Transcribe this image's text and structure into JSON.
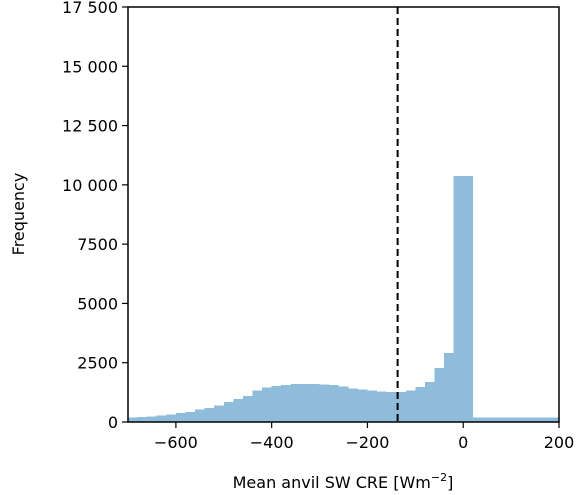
{
  "chart_data": {
    "type": "bar",
    "xlabel_main": "Mean anvil SW CRE [Wm",
    "xlabel_sup": "−2",
    "xlabel_end": "]",
    "ylabel": "Frequency",
    "xlim": [
      -700,
      200
    ],
    "ylim": [
      0,
      17500
    ],
    "bin_width": 20,
    "bar_color": "#8fbcdb",
    "reference_line_x": -137,
    "reference_line_color": "#000000",
    "x_ticks": [
      {
        "value": -600,
        "label": "−600"
      },
      {
        "value": -400,
        "label": "−400"
      },
      {
        "value": -200,
        "label": "−200"
      },
      {
        "value": 0,
        "label": "0"
      },
      {
        "value": 200,
        "label": "200"
      }
    ],
    "y_ticks": [
      {
        "value": 0,
        "label": "0"
      },
      {
        "value": 2500,
        "label": "2500"
      },
      {
        "value": 5000,
        "label": "5000"
      },
      {
        "value": 7500,
        "label": "7500"
      },
      {
        "value": 10000,
        "label": "10 000"
      },
      {
        "value": 12500,
        "label": "12 500"
      },
      {
        "value": 15000,
        "label": "15 000"
      },
      {
        "value": 17500,
        "label": "17 500"
      }
    ],
    "bins": [
      {
        "x0": -700,
        "x1": -680,
        "value": 200
      },
      {
        "x0": -680,
        "x1": -660,
        "value": 210
      },
      {
        "x0": -660,
        "x1": -640,
        "value": 240
      },
      {
        "x0": -640,
        "x1": -620,
        "value": 280
      },
      {
        "x0": -620,
        "x1": -600,
        "value": 320
      },
      {
        "x0": -600,
        "x1": -580,
        "value": 370
      },
      {
        "x0": -580,
        "x1": -560,
        "value": 430
      },
      {
        "x0": -560,
        "x1": -540,
        "value": 520
      },
      {
        "x0": -540,
        "x1": -520,
        "value": 600
      },
      {
        "x0": -520,
        "x1": -500,
        "value": 700
      },
      {
        "x0": -500,
        "x1": -480,
        "value": 850
      },
      {
        "x0": -480,
        "x1": -460,
        "value": 980
      },
      {
        "x0": -460,
        "x1": -440,
        "value": 1100
      },
      {
        "x0": -440,
        "x1": -420,
        "value": 1330
      },
      {
        "x0": -420,
        "x1": -400,
        "value": 1450
      },
      {
        "x0": -400,
        "x1": -380,
        "value": 1520
      },
      {
        "x0": -380,
        "x1": -360,
        "value": 1570
      },
      {
        "x0": -360,
        "x1": -340,
        "value": 1600
      },
      {
        "x0": -340,
        "x1": -320,
        "value": 1610
      },
      {
        "x0": -320,
        "x1": -300,
        "value": 1600
      },
      {
        "x0": -300,
        "x1": -280,
        "value": 1580
      },
      {
        "x0": -280,
        "x1": -260,
        "value": 1560
      },
      {
        "x0": -260,
        "x1": -240,
        "value": 1500
      },
      {
        "x0": -240,
        "x1": -220,
        "value": 1420
      },
      {
        "x0": -220,
        "x1": -200,
        "value": 1360
      },
      {
        "x0": -200,
        "x1": -180,
        "value": 1320
      },
      {
        "x0": -180,
        "x1": -160,
        "value": 1290
      },
      {
        "x0": -160,
        "x1": -140,
        "value": 1260
      },
      {
        "x0": -140,
        "x1": -120,
        "value": 1270
      },
      {
        "x0": -120,
        "x1": -100,
        "value": 1330
      },
      {
        "x0": -100,
        "x1": -80,
        "value": 1480
      },
      {
        "x0": -80,
        "x1": -60,
        "value": 1680
      },
      {
        "x0": -60,
        "x1": -40,
        "value": 2280
      },
      {
        "x0": -40,
        "x1": -20,
        "value": 2900
      },
      {
        "x0": -20,
        "x1": 0,
        "value": 10380
      },
      {
        "x0": 0,
        "x1": 20,
        "value": 10380
      },
      {
        "x0": 20,
        "x1": 200,
        "value": 200
      }
    ]
  }
}
